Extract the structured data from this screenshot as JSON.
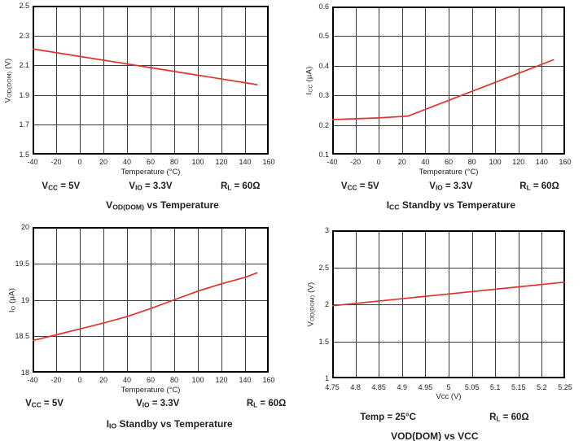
{
  "colors": {
    "background": "#ffffff",
    "line": "#e0322d",
    "grid": "#3d3d3d",
    "axis": "#000000",
    "text": "#1f1f1f"
  },
  "chart_data": [
    {
      "id": "vod-dom-vs-temperature",
      "type": "line",
      "title": [
        {
          "text": "V"
        },
        {
          "text": "OD(DOM)",
          "sub": true
        },
        {
          "text": " vs Temperature"
        }
      ],
      "xlabel": "Temperature (°C)",
      "ylabel": [
        {
          "text": "V"
        },
        {
          "text": "OD(DOM)",
          "sub": true
        },
        {
          "text": " (V)"
        }
      ],
      "xlim": [
        -40,
        160
      ],
      "ylim": [
        1.5,
        2.5
      ],
      "x_ticks": [
        -40,
        -20,
        0,
        20,
        40,
        60,
        80,
        100,
        120,
        140,
        160
      ],
      "x_tick_labels": [
        "-40",
        "-20",
        "0",
        "20",
        "40",
        "60",
        "80",
        "100",
        "120",
        "140",
        "160"
      ],
      "y_ticks": [
        1.5,
        1.7,
        1.9,
        2.1,
        2.3,
        2.5
      ],
      "y_tick_labels": [
        "1.5",
        "1.7",
        "1.9",
        "2.1",
        "2.3",
        "2.5"
      ],
      "grid": true,
      "legend": "none",
      "conditions": [
        [
          {
            "text": "V"
          },
          {
            "text": "CC",
            "sub": true
          },
          {
            "text": " = 5V"
          }
        ],
        [
          {
            "text": "V"
          },
          {
            "text": "IO",
            "sub": true
          },
          {
            "text": " = 3.3V"
          }
        ],
        [
          {
            "text": "R"
          },
          {
            "text": "L",
            "sub": true
          },
          {
            "text": " = 60Ω"
          }
        ]
      ],
      "series": [
        {
          "name": "VOD(DOM)",
          "x": [
            -40,
            55,
            150
          ],
          "y": [
            2.21,
            2.09,
            1.97
          ]
        }
      ]
    },
    {
      "id": "icc-standby-vs-temperature",
      "type": "line",
      "title": [
        {
          "text": "I"
        },
        {
          "text": "CC",
          "sub": true
        },
        {
          "text": " Standby vs Temperature"
        }
      ],
      "xlabel": "Temperature (°C)",
      "ylabel": [
        {
          "text": "I"
        },
        {
          "text": "CC",
          "sub": true
        },
        {
          "text": " (µA)"
        }
      ],
      "xlim": [
        -40,
        160
      ],
      "ylim": [
        0.1,
        0.6
      ],
      "x_ticks": [
        -40,
        -20,
        0,
        20,
        40,
        60,
        80,
        100,
        120,
        140,
        160
      ],
      "x_tick_labels": [
        "-40",
        "-20",
        "0",
        "20",
        "40",
        "60",
        "80",
        "100",
        "120",
        "140",
        "160"
      ],
      "y_ticks": [
        0.1,
        0.2,
        0.3,
        0.4,
        0.5,
        0.6
      ],
      "y_tick_labels": [
        "0.1",
        "0.2",
        "0.3",
        "0.4",
        "0.5",
        "0.6"
      ],
      "grid": true,
      "legend": "none",
      "conditions": [
        [
          {
            "text": "V"
          },
          {
            "text": "CC",
            "sub": true
          },
          {
            "text": " = 5V"
          }
        ],
        [
          {
            "text": "V"
          },
          {
            "text": "IO",
            "sub": true
          },
          {
            "text": " = 3.3V"
          }
        ],
        [
          {
            "text": "R"
          },
          {
            "text": "L",
            "sub": true
          },
          {
            "text": " = 60Ω"
          }
        ]
      ],
      "series": [
        {
          "name": "ICC standby",
          "x": [
            -40,
            0,
            25,
            150
          ],
          "y": [
            0.218,
            0.224,
            0.23,
            0.42
          ]
        }
      ]
    },
    {
      "id": "iio-standby-vs-temperature",
      "type": "line",
      "title": [
        {
          "text": "I"
        },
        {
          "text": "IO",
          "sub": true
        },
        {
          "text": " Standby vs Temperature"
        }
      ],
      "xlabel": "Temperature (°C)",
      "ylabel": [
        {
          "text": "I"
        },
        {
          "text": "O",
          "sub": true
        },
        {
          "text": " (µA)"
        }
      ],
      "xlim": [
        -40,
        160
      ],
      "ylim": [
        18,
        20
      ],
      "x_ticks": [
        -40,
        -20,
        0,
        20,
        40,
        60,
        80,
        100,
        120,
        140,
        160
      ],
      "x_tick_labels": [
        "-40",
        "-20",
        "0",
        "20",
        "40",
        "60",
        "80",
        "100",
        "120",
        "140",
        "160"
      ],
      "y_ticks": [
        18,
        18.5,
        19,
        19.5,
        20
      ],
      "y_tick_labels": [
        "18",
        "18.5",
        "19",
        "19.5",
        "20"
      ],
      "grid": true,
      "legend": "none",
      "conditions": [
        [
          {
            "text": "V"
          },
          {
            "text": "CC",
            "sub": true
          },
          {
            "text": " = 5V"
          }
        ],
        [
          {
            "text": "V"
          },
          {
            "text": "IO",
            "sub": true
          },
          {
            "text": " = 3.3V"
          }
        ],
        [
          {
            "text": "R"
          },
          {
            "text": "L",
            "sub": true
          },
          {
            "text": " = 60Ω"
          }
        ]
      ],
      "series": [
        {
          "name": "IIO standby",
          "x": [
            -40,
            -20,
            0,
            20,
            40,
            60,
            80,
            100,
            120,
            140,
            150
          ],
          "y": [
            18.44,
            18.52,
            18.6,
            18.68,
            18.77,
            18.88,
            19.0,
            19.12,
            19.22,
            19.31,
            19.37
          ]
        }
      ]
    },
    {
      "id": "vod-dom-vs-vcc",
      "type": "line",
      "title": [
        {
          "text": "VOD(DOM) vs VCC"
        }
      ],
      "xlabel": "Vcc (V)",
      "ylabel": [
        {
          "text": "V"
        },
        {
          "text": "OD(DOM)",
          "sub": true
        },
        {
          "text": " (V)"
        }
      ],
      "xlim": [
        4.75,
        5.25
      ],
      "ylim": [
        1,
        3
      ],
      "x_ticks": [
        4.75,
        4.8,
        4.85,
        4.9,
        4.95,
        5,
        5.05,
        5.1,
        5.15,
        5.2,
        5.25
      ],
      "x_tick_labels": [
        "4.75",
        "4.8",
        "4.85",
        "4.9",
        "4.95",
        "5",
        "5.05",
        "5.1",
        "5.15",
        "5.2",
        "5.25"
      ],
      "y_ticks": [
        1,
        1.5,
        2,
        2.5,
        3
      ],
      "y_tick_labels": [
        "1",
        "1.5",
        "2",
        "2.5",
        "3"
      ],
      "grid": true,
      "legend": "none",
      "conditions": [
        [
          {
            "text": "Temp = 25°C"
          }
        ],
        [
          {
            "text": "R"
          },
          {
            "text": "L",
            "sub": true
          },
          {
            "text": " = 60Ω"
          }
        ]
      ],
      "series": [
        {
          "name": "VOD(DOM)",
          "x": [
            4.75,
            5.0,
            5.25
          ],
          "y": [
            1.98,
            2.14,
            2.3
          ]
        }
      ]
    }
  ]
}
